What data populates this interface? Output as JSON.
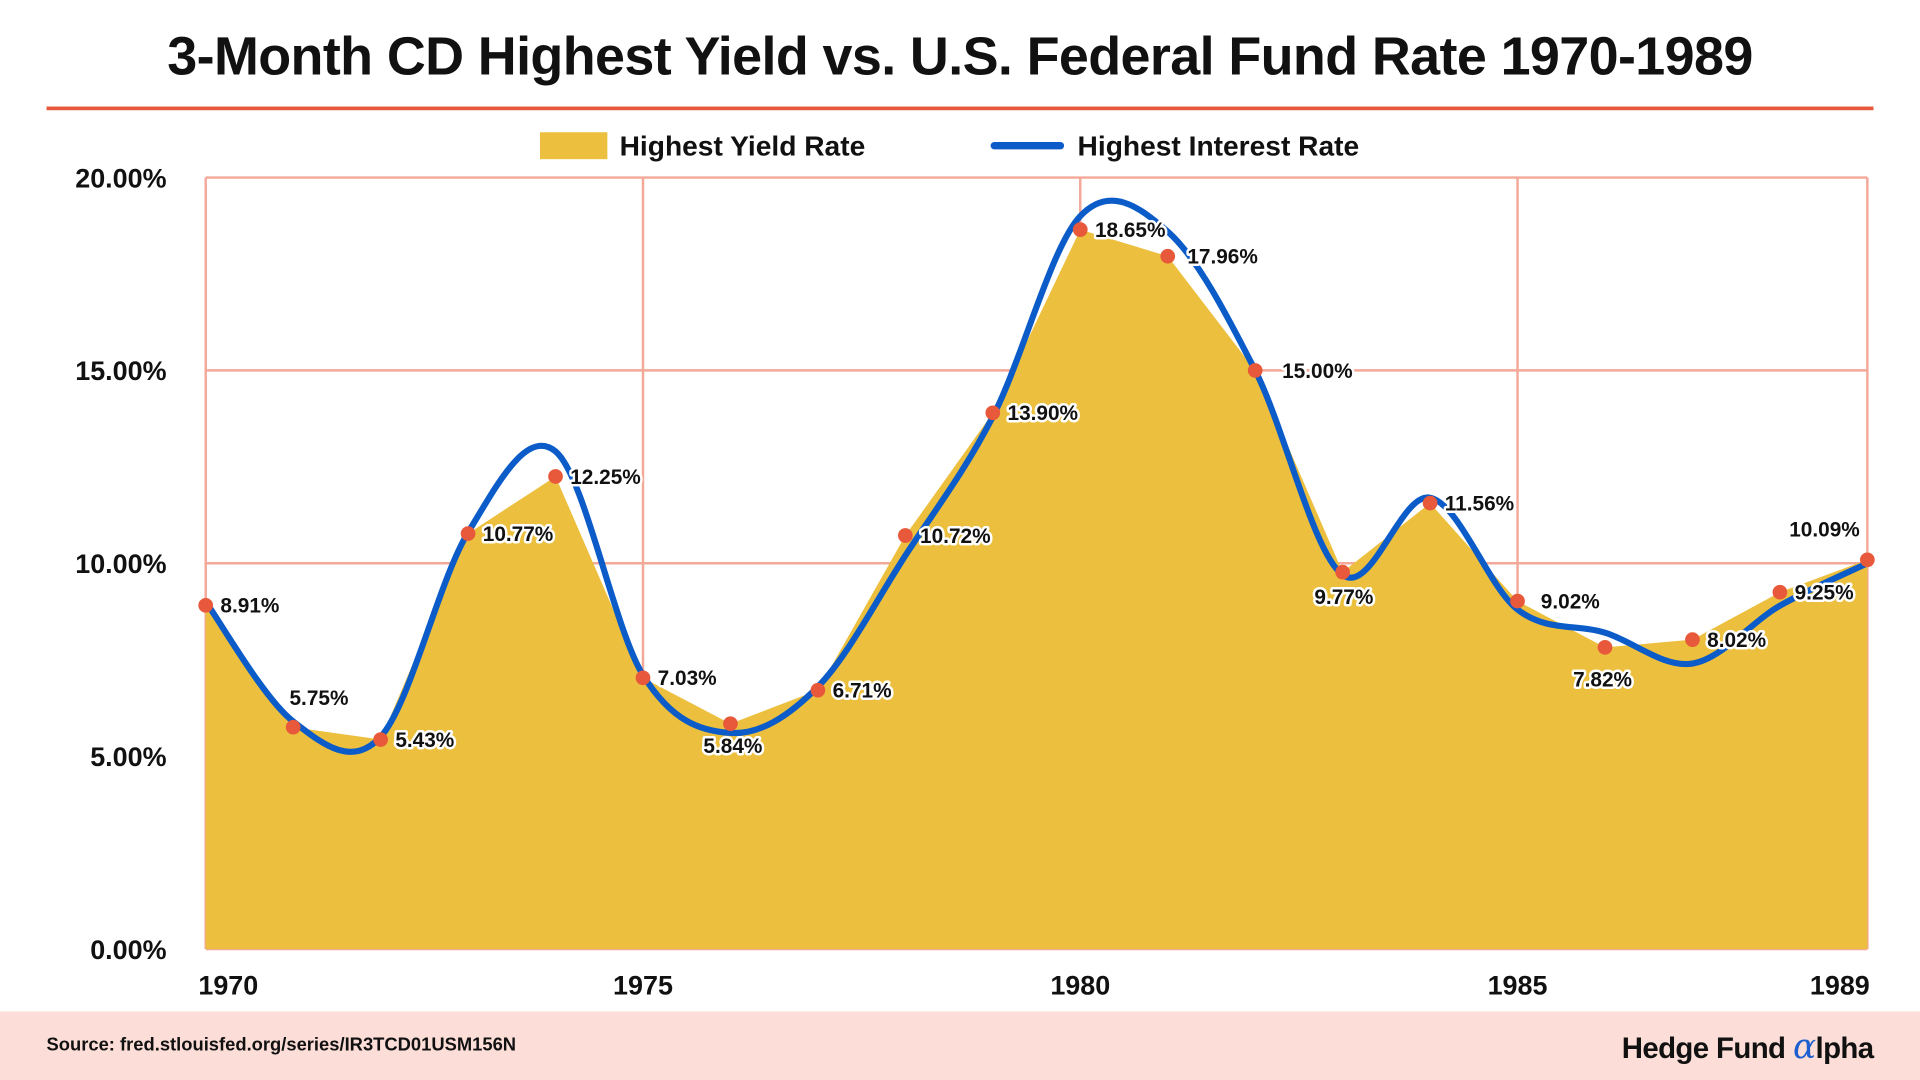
{
  "title": "3-Month CD Highest Yield vs. U.S. Federal Fund Rate 1970-1989",
  "footer": {
    "source": "Source: fred.stlouisfed.org/series/IR3TCD01USM156N",
    "logo_text": "Hedge Fund",
    "logo_alpha": "α",
    "logo_suffix": "lpha"
  },
  "chart_data": {
    "type": "area",
    "title": "3-Month CD Highest Yield vs. U.S. Federal Fund Rate 1970-1989",
    "x": [
      1970,
      1971,
      1972,
      1973,
      1974,
      1975,
      1976,
      1977,
      1978,
      1979,
      1980,
      1981,
      1982,
      1983,
      1984,
      1985,
      1986,
      1987,
      1988,
      1989
    ],
    "x_ticks": [
      "1970",
      "1975",
      "1980",
      "1985",
      "1989"
    ],
    "y_ticks": [
      "0.00%",
      "5.00%",
      "10.00%",
      "15.00%",
      "20.00%"
    ],
    "ylim": [
      0,
      20
    ],
    "grid": true,
    "legend": "top-center",
    "series": [
      {
        "name": "Highest Yield Rate",
        "type": "area",
        "color": "#ECC03E",
        "marker_color": "#E8583A",
        "values": [
          8.91,
          5.75,
          5.43,
          10.77,
          12.25,
          7.03,
          5.84,
          6.71,
          10.72,
          13.9,
          18.65,
          17.96,
          15.0,
          9.77,
          11.56,
          9.02,
          7.82,
          8.02,
          9.25,
          10.09
        ],
        "labels": [
          "8.91%",
          "5.75%",
          "5.43%",
          "10.77%",
          "12.25%",
          "7.03%",
          "5.84%",
          "6.71%",
          "10.72%",
          "13.90%",
          "18.65%",
          "17.96%",
          "15.00%",
          "9.77%",
          "11.56%",
          "9.02%",
          "7.82%",
          "8.02%",
          "9.25%",
          "10.09%"
        ]
      },
      {
        "name": "Highest Interest Rate",
        "type": "line",
        "color": "#0B5BC8",
        "values": [
          9.0,
          5.9,
          5.5,
          10.8,
          12.9,
          7.1,
          5.6,
          6.8,
          10.2,
          13.8,
          19.0,
          18.6,
          15.0,
          9.7,
          11.7,
          8.8,
          8.2,
          7.4,
          8.9,
          10.0
        ]
      }
    ],
    "colors": {
      "grid": "#F3A898",
      "grid_major": "#EE9A6E",
      "title_rule": "#E8583A",
      "footer_bg": "#FCDDD7"
    }
  }
}
